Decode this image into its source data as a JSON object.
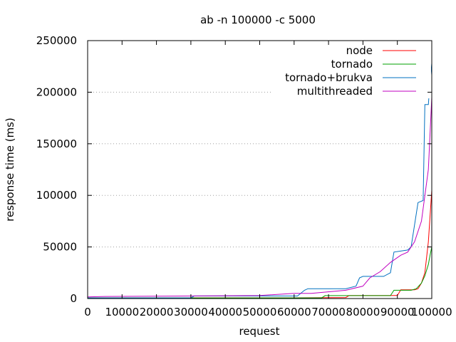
{
  "chart_data": {
    "type": "line",
    "title": "ab -n 100000 -c 5000",
    "xlabel": "request",
    "ylabel": "response time (ms)",
    "xlim": [
      0,
      100000
    ],
    "ylim": [
      0,
      250000
    ],
    "x_ticks": [
      "0",
      "10000",
      "20000",
      "30000",
      "40000",
      "50000",
      "60000",
      "70000",
      "80000",
      "90000",
      "100000"
    ],
    "y_ticks": [
      "0",
      "50000",
      "100000",
      "150000",
      "200000",
      "250000"
    ],
    "grid": "horizontal dotted",
    "legend_position": "top-right",
    "series": [
      {
        "name": "node",
        "color": "#ff0000",
        "points": [
          [
            0,
            700
          ],
          [
            60000,
            700
          ],
          [
            75000,
            1000
          ],
          [
            76000,
            3000
          ],
          [
            90000,
            3000
          ],
          [
            91000,
            8500
          ],
          [
            95000,
            8500
          ],
          [
            96000,
            9500
          ],
          [
            97000,
            15000
          ],
          [
            98000,
            25000
          ],
          [
            99000,
            55000
          ],
          [
            99500,
            80000
          ],
          [
            100000,
            105000
          ]
        ]
      },
      {
        "name": "tornado",
        "color": "#00a000",
        "points": [
          [
            0,
            600
          ],
          [
            68000,
            600
          ],
          [
            69000,
            2800
          ],
          [
            88000,
            2800
          ],
          [
            89000,
            8000
          ],
          [
            94000,
            8000
          ],
          [
            95500,
            9500
          ],
          [
            97000,
            15000
          ],
          [
            98000,
            22000
          ],
          [
            99000,
            33000
          ],
          [
            99500,
            42000
          ],
          [
            100000,
            50000
          ]
        ]
      },
      {
        "name": "tornado+brukva",
        "color": "#0070c0",
        "points": [
          [
            0,
            600
          ],
          [
            30000,
            600
          ],
          [
            31000,
            2500
          ],
          [
            61000,
            2500
          ],
          [
            63000,
            8000
          ],
          [
            64000,
            9500
          ],
          [
            75000,
            9500
          ],
          [
            78000,
            12000
          ],
          [
            79000,
            20000
          ],
          [
            80000,
            21500
          ],
          [
            86000,
            21500
          ],
          [
            88000,
            25000
          ],
          [
            89000,
            45000
          ],
          [
            93000,
            47000
          ],
          [
            94000,
            50000
          ],
          [
            96000,
            93000
          ],
          [
            97500,
            95000
          ],
          [
            98000,
            188000
          ],
          [
            99000,
            188000
          ],
          [
            99500,
            210000
          ],
          [
            100000,
            228000
          ]
        ]
      },
      {
        "name": "multithreaded",
        "color": "#c000c0",
        "points": [
          [
            0,
            1500
          ],
          [
            5000,
            2000
          ],
          [
            30000,
            2500
          ],
          [
            50000,
            3000
          ],
          [
            60000,
            5000
          ],
          [
            65000,
            5000
          ],
          [
            75000,
            8000
          ],
          [
            80000,
            12000
          ],
          [
            82000,
            20000
          ],
          [
            85000,
            26000
          ],
          [
            88000,
            35000
          ],
          [
            91000,
            42000
          ],
          [
            93000,
            45000
          ],
          [
            95000,
            55000
          ],
          [
            97000,
            75000
          ],
          [
            99000,
            125000
          ],
          [
            100000,
            195000
          ]
        ]
      }
    ]
  }
}
